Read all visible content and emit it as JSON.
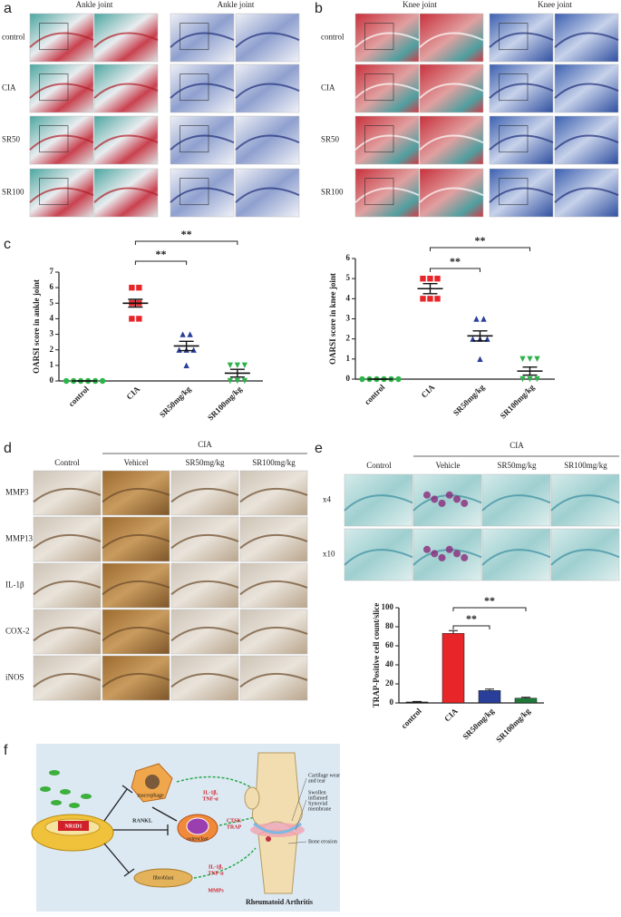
{
  "panel_labels": [
    "a",
    "b",
    "c",
    "d",
    "e",
    "f"
  ],
  "panel_a": {
    "column_headers": [
      "Ankle joint",
      "Ankle joint"
    ],
    "row_labels": [
      "control",
      "CIA",
      "SR50",
      "SR100"
    ]
  },
  "panel_b": {
    "column_headers": [
      "Knee joint",
      "Knee joint"
    ],
    "row_labels": [
      "control",
      "CIA",
      "SR50",
      "SR100"
    ]
  },
  "panel_d": {
    "group_label": "CIA",
    "column_headers": [
      "Control",
      "Vehicel",
      "SR50mg/kg",
      "SR100mg/kg"
    ],
    "row_labels": [
      "MMP3",
      "MMP13",
      "IL-1β",
      "COX-2",
      "iNOS"
    ]
  },
  "panel_e": {
    "group_label": "CIA",
    "column_headers": [
      "Control",
      "Vehicle",
      "SR50mg/kg",
      "SR100mg/kg"
    ],
    "row_labels": [
      "x4",
      "x10"
    ]
  },
  "panel_f": {
    "labels": [
      "NR1D1",
      "macrophage",
      "RANKL",
      "osteoclast",
      "fibroblast",
      "IL-1β,",
      "TNF-α",
      "CTSK",
      "TRAP",
      "IL-1β,",
      "TNF-α",
      "MMPs",
      "Cartilage wear",
      "and tear",
      "Swollen",
      "inflamed",
      "Synovial",
      "membrane",
      "Bone erosion",
      "Rheumatoid Arthritis"
    ]
  },
  "chart_data": [
    {
      "type": "strip",
      "ylabel": "OARSI score in ankle joint",
      "categories": [
        "control",
        "CIA",
        "SR50mg/kg",
        "SR100mg/kg"
      ],
      "points": [
        [
          0,
          0,
          0,
          0,
          0,
          0
        ],
        [
          6,
          6,
          5,
          5,
          4,
          4
        ],
        [
          3,
          3,
          2,
          2,
          2,
          1
        ],
        [
          1,
          1,
          1,
          0,
          0,
          0
        ]
      ],
      "means": [
        0,
        5,
        2.25,
        0.5
      ],
      "errors": [
        0,
        0.25,
        0.3,
        0.25
      ],
      "colors": [
        "#2db34a",
        "#e8262a",
        "#2a3f9a",
        "#2db34a"
      ],
      "markers": [
        "circle",
        "square",
        "triangle",
        "triangle-down"
      ],
      "ylim": [
        0,
        7
      ],
      "yticks": [
        0,
        1,
        2,
        3,
        4,
        5,
        6,
        7
      ],
      "significance": [
        {
          "from": 1,
          "to": 2,
          "label": "**"
        },
        {
          "from": 1,
          "to": 3,
          "label": "**"
        }
      ]
    },
    {
      "type": "strip",
      "ylabel": "OARSI score in knee joint",
      "categories": [
        "control",
        "CIA",
        "SR50mg/kg",
        "SR100mg/kg"
      ],
      "points": [
        [
          0,
          0,
          0,
          0,
          0,
          0
        ],
        [
          5,
          5,
          5,
          4,
          4,
          4
        ],
        [
          3,
          3,
          2,
          2,
          2,
          1
        ],
        [
          1,
          1,
          1,
          0,
          0,
          0
        ]
      ],
      "means": [
        0,
        4.5,
        2.15,
        0.4
      ],
      "errors": [
        0,
        0.25,
        0.25,
        0.2
      ],
      "colors": [
        "#2db34a",
        "#e8262a",
        "#2a3f9a",
        "#2db34a"
      ],
      "markers": [
        "circle",
        "square",
        "triangle",
        "triangle-down"
      ],
      "ylim": [
        0,
        6
      ],
      "yticks": [
        0,
        1,
        2,
        3,
        4,
        5,
        6
      ],
      "significance": [
        {
          "from": 1,
          "to": 2,
          "label": "**"
        },
        {
          "from": 1,
          "to": 3,
          "label": "**"
        }
      ]
    },
    {
      "type": "bar",
      "ylabel": "TRAP-Positive cell count/slice",
      "categories": [
        "control",
        "CIA",
        "SR50mg/kg",
        "SR100mg/kg"
      ],
      "values": [
        1,
        73,
        13,
        5
      ],
      "errors": [
        0.5,
        3,
        1.5,
        1
      ],
      "colors": [
        "#222222",
        "#e8262a",
        "#2a3f9a",
        "#1f7a3a"
      ],
      "ylim": [
        0,
        100
      ],
      "yticks": [
        0,
        20,
        40,
        60,
        80,
        100
      ],
      "significance": [
        {
          "from": 1,
          "to": 2,
          "label": "**"
        },
        {
          "from": 1,
          "to": 3,
          "label": "**"
        }
      ]
    }
  ]
}
